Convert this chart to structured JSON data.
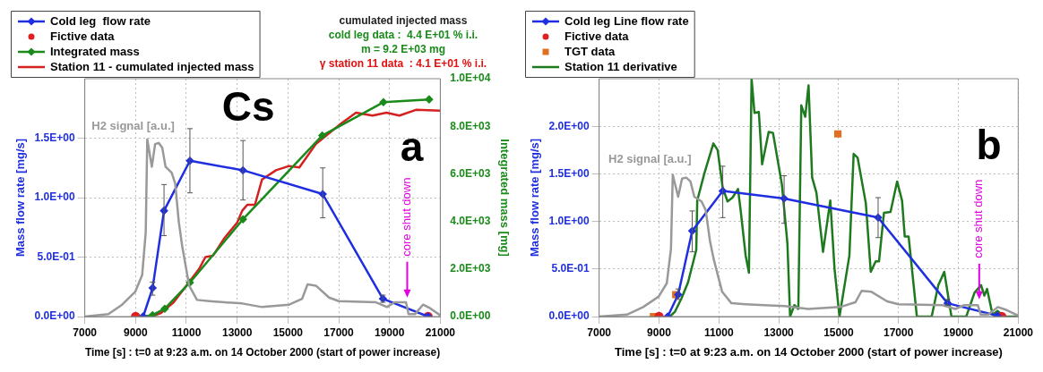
{
  "chart_data": [
    {
      "type": "line",
      "xlabel": "Time [s] : t=0 at 9:23 a.m. on 14 October 2000 (start of power increase)",
      "ylabel": "Mass flow rate [mg/s]",
      "y2label": "Integrated mass [mg]",
      "xlim": [
        7000,
        21000
      ],
      "xticks": [
        7000,
        9000,
        11000,
        13000,
        15000,
        17000,
        19000,
        21000
      ],
      "ylim": [
        0,
        2
      ],
      "yticks": [
        {
          "value": 0,
          "label": "0.0E+00"
        },
        {
          "value": 0.5,
          "label": "5.0E-01"
        },
        {
          "value": 1,
          "label": "1.0E+00"
        },
        {
          "value": 1.5,
          "label": "1.5E+00"
        }
      ],
      "y2lim": [
        0,
        10000
      ],
      "y2ticks": [
        {
          "value": 0,
          "label": "0.0E+00"
        },
        {
          "value": 2000,
          "label": "2.0E+03"
        },
        {
          "value": 4000,
          "label": "4.0E+03"
        },
        {
          "value": 6000,
          "label": "6.0E+03"
        },
        {
          "value": 8000,
          "label": "8.0E+03"
        },
        {
          "value": 10000,
          "label": "1.0E+04"
        }
      ],
      "grid": true,
      "legend": "top left",
      "annotations": [
        "H2 signal [a.u.]",
        "Cs",
        "a",
        "cumulated injected mass",
        "cold leg data :  4.4 E+01 % i.i.",
        "m = 9.2 E+03 mg",
        "γ station 11 data  : 4.1 E+01 % i.i.",
        "core shut down"
      ],
      "series": [
        {
          "type": "line",
          "color": "#999999",
          "x": [
            7000,
            7930,
            8470,
            8990,
            9260,
            9400,
            9460,
            9640,
            9770,
            9910,
            10050,
            10180,
            10420,
            10560,
            10700,
            10830,
            11110,
            11420,
            11900,
            12500,
            13200,
            13980,
            15050,
            15560,
            15770,
            16100,
            16620,
            17000,
            18470,
            18900,
            19200,
            19650,
            19750,
            20000,
            20320,
            20600,
            21000
          ],
          "values": [
            0,
            0.02,
            0.1,
            0.21,
            0.35,
            0.71,
            1.49,
            1.26,
            1.45,
            1.46,
            1.42,
            1.26,
            1.21,
            1.12,
            0.8,
            0.6,
            0.26,
            0.14,
            0.13,
            0.12,
            0.11,
            0.08,
            0.1,
            0.15,
            0.27,
            0.26,
            0.16,
            0.13,
            0.12,
            0.08,
            0.12,
            0.12,
            0.02,
            0.02,
            0.1,
            0.07,
            0.01
          ]
        },
        {
          "type": "line",
          "name": "Cold leg  flow rate",
          "color": "#1f2fe0",
          "marker": "diamond",
          "x": [
            9300,
            9670,
            10120,
            11140,
            13230,
            16370,
            18740,
            20520
          ],
          "values": [
            0,
            0.24,
            0.89,
            1.31,
            1.23,
            1.03,
            0.15,
            0
          ],
          "errors": [
            null,
            [
              0.18,
              0.29
            ],
            [
              0.68,
              1.11
            ],
            [
              1.04,
              1.58
            ],
            [
              0.98,
              1.48
            ],
            [
              0.83,
              1.25
            ],
            [
              0.12,
              0.18
            ],
            null
          ]
        },
        {
          "type": "scatter",
          "name": "Fictive data",
          "color": "#e02020",
          "marker": "circle",
          "x": [
            9000,
            20520
          ],
          "values": [
            0,
            0
          ]
        },
        {
          "type": "line",
          "name": "Integrated mass",
          "color": "#1a8a1a",
          "marker": "diamond",
          "axis": "y2",
          "x": [
            9300,
            9670,
            10150,
            11140,
            13230,
            16350,
            18760,
            20560
          ],
          "values": [
            0,
            60,
            330,
            1430,
            4090,
            7610,
            9010,
            9130
          ]
        },
        {
          "type": "line",
          "name": "Station 11 - cumulated injected mass",
          "color": "#d42020",
          "axis": "y2",
          "x": [
            9000,
            9700,
            10000,
            10500,
            11000,
            11500,
            11750,
            12050,
            12500,
            13000,
            13200,
            13400,
            13700,
            13980,
            14530,
            15045,
            15450,
            16100,
            16500,
            17030,
            17680,
            18330,
            18880,
            19390,
            20040,
            21000
          ],
          "values": [
            0,
            30,
            150,
            600,
            1300,
            2000,
            2500,
            2560,
            3300,
            3950,
            4450,
            4700,
            4700,
            5760,
            6150,
            6330,
            6270,
            7250,
            7600,
            8060,
            8570,
            8450,
            8570,
            8450,
            8690,
            8660
          ]
        }
      ]
    },
    {
      "type": "line",
      "xlabel": "Time [s] : t=0 at 9:23 a.m. on 14 October 2000 (start of power increase)",
      "ylabel": "Mass flow rate [mg/s]",
      "xlim": [
        7000,
        21000
      ],
      "xticks": [
        7000,
        9000,
        11000,
        13000,
        15000,
        17000,
        19000,
        21000
      ],
      "ylim": [
        0,
        2.5
      ],
      "yticks": [
        {
          "value": 0,
          "label": "0.0E+00"
        },
        {
          "value": 0.5,
          "label": "5.0E-01"
        },
        {
          "value": 1,
          "label": "1.0E+00"
        },
        {
          "value": 1.5,
          "label": "1.5E+00"
        },
        {
          "value": 2,
          "label": "2.0E+00"
        }
      ],
      "grid": true,
      "legend": "top left",
      "annotations": [
        "H2 signal [a.u.]",
        "b",
        "core shut down"
      ],
      "series": [
        {
          "type": "line",
          "color": "#999999",
          "x": [
            7000,
            7930,
            8470,
            8990,
            9260,
            9400,
            9460,
            9640,
            9770,
            9910,
            10050,
            10180,
            10420,
            10560,
            10700,
            10830,
            11110,
            11420,
            11900,
            12500,
            13200,
            13980,
            15050,
            15560,
            15770,
            16100,
            16620,
            17000,
            18470,
            18900,
            19200,
            19650,
            19750,
            20000,
            20320,
            20600,
            21000
          ],
          "values": [
            0,
            0.02,
            0.1,
            0.21,
            0.35,
            0.71,
            1.49,
            1.26,
            1.45,
            1.46,
            1.42,
            1.26,
            1.21,
            1.12,
            0.8,
            0.6,
            0.26,
            0.14,
            0.13,
            0.12,
            0.11,
            0.08,
            0.1,
            0.15,
            0.27,
            0.26,
            0.16,
            0.13,
            0.12,
            0.08,
            0.12,
            0.12,
            0.02,
            0.02,
            0.1,
            0.07,
            0.01
          ]
        },
        {
          "type": "line",
          "name": "Cold leg Line flow rate",
          "color": "#1f2fe0",
          "marker": "diamond",
          "x": [
            9290,
            9640,
            10110,
            11130,
            13180,
            16320,
            18640,
            20300
          ],
          "values": [
            0,
            0.23,
            0.9,
            1.32,
            1.24,
            1.04,
            0.14,
            0.01
          ],
          "errors": [
            null,
            [
              0.18,
              0.29
            ],
            [
              0.68,
              1.11
            ],
            [
              1.04,
              1.58
            ],
            [
              0.98,
              1.48
            ],
            [
              0.83,
              1.25
            ],
            [
              0.12,
              0.18
            ],
            null
          ]
        },
        {
          "type": "scatter",
          "name": "Fictive data",
          "color": "#e02020",
          "marker": "circle",
          "x": [
            9000,
            20450
          ],
          "values": [
            0,
            0
          ]
        },
        {
          "type": "scatter",
          "name": "TGT data",
          "color": "#e07020",
          "marker": "square",
          "x": [
            8815,
            9560,
            14975
          ],
          "values": [
            0,
            0.23,
            1.92
          ]
        },
        {
          "type": "line",
          "name": "Station 11 derivative",
          "color": "#1e7a1e",
          "x": [
            9365,
            9530,
            9750,
            9970,
            10245,
            10278,
            10520,
            10817,
            10960,
            11125,
            11290,
            11455,
            11640,
            11730,
            11895,
            12005,
            12093,
            12190,
            12335,
            12445,
            12665,
            12808,
            12940,
            13105,
            13290,
            13380,
            13523,
            13655,
            13754,
            13886,
            13996,
            14117,
            14260,
            14480,
            14722,
            14865,
            15030,
            15360,
            15503,
            15635,
            15910,
            16075,
            16240,
            16350,
            16515,
            16735,
            16955,
            17120,
            17210,
            17340,
            17615,
            18110,
            18330,
            18530,
            18770,
            19265,
            19540,
            19760,
            19870,
            19960,
            20145,
            20310,
            20530,
            20970
          ],
          "values": [
            0,
            0.05,
            0.19,
            0.36,
            0.7,
            1.22,
            1.51,
            1.82,
            1.75,
            1.36,
            1.21,
            1.25,
            1.34,
            1.11,
            0.64,
            0.46,
            2.5,
            2.14,
            2.15,
            1.6,
            1.94,
            1.93,
            1.69,
            1.39,
            0.77,
            0,
            0.12,
            0.08,
            2.22,
            2.1,
            2.43,
            1.46,
            1.3,
            0.68,
            1.22,
            0.5,
            0,
            0.64,
            1.71,
            1.67,
            1.19,
            0.47,
            0.58,
            0.58,
            1.09,
            1.1,
            1.42,
            1.22,
            0.84,
            0.84,
            0,
            0,
            0.33,
            0.47,
            0,
            0,
            0.25,
            0.33,
            0.22,
            0.29,
            0.02,
            0.06,
            0,
            0
          ]
        }
      ]
    }
  ]
}
